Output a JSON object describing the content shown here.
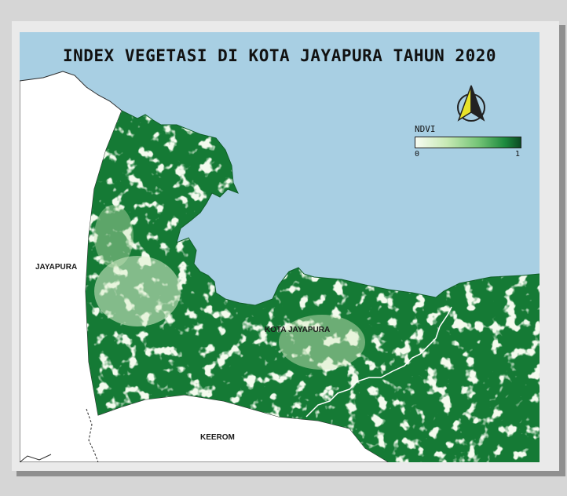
{
  "map": {
    "title": "INDEX VEGETASI DI KOTA JAYAPURA TAHUN 2020",
    "colors": {
      "sea": "#a8cfe3",
      "vegetation_high": "#157a35",
      "vegetation_low": "#e6f5d8",
      "outside": "#ffffff"
    },
    "places": [
      {
        "name": "JAYAPURA"
      },
      {
        "name": "KOTA JAYAPURA"
      },
      {
        "name": "KEEROM"
      }
    ],
    "north_arrow": {
      "icon": "north-arrow-icon"
    }
  },
  "legend": {
    "title": "NDVI",
    "min_label": "0",
    "max_label": "1"
  }
}
